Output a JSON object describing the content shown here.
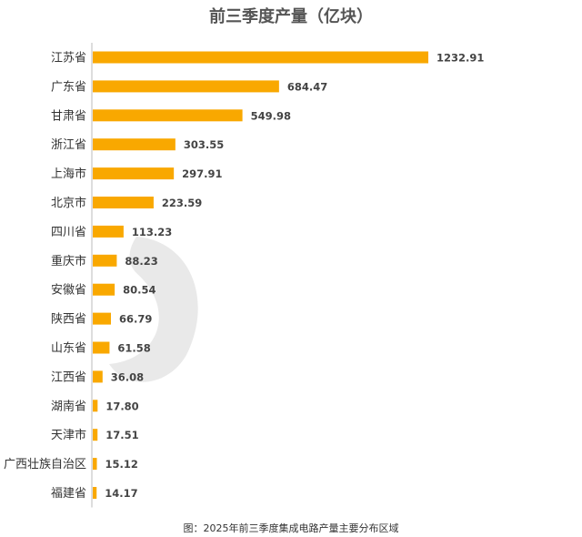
{
  "colors": {
    "bar": "#F9A800",
    "axis": "#bbbbbb",
    "watermark": "#e9e9e9"
  },
  "caption": "图：2025年前三季度集成电路产量主要分布区域",
  "chart_data": {
    "type": "bar",
    "orientation": "horizontal",
    "title": "前三季度产量（亿块）",
    "categories": [
      "江苏省",
      "广东省",
      "甘肃省",
      "浙江省",
      "上海市",
      "北京市",
      "四川省",
      "重庆市",
      "安徽省",
      "陕西省",
      "山东省",
      "江西省",
      "湖南省",
      "天津市",
      "广西壮族自治区",
      "福建省"
    ],
    "values": [
      1232.91,
      684.47,
      549.98,
      303.55,
      297.91,
      223.59,
      113.23,
      88.23,
      80.54,
      66.79,
      61.58,
      36.08,
      17.8,
      17.51,
      15.12,
      14.17
    ],
    "value_labels": [
      "1232.91",
      "684.47",
      "549.98",
      "303.55",
      "297.91",
      "223.59",
      "113.23",
      "88.23",
      "80.54",
      "66.79",
      "61.58",
      "36.08",
      "17.80",
      "17.51",
      "15.12",
      "14.17"
    ],
    "xlim": [
      0,
      1232.91
    ],
    "grid": false,
    "legend": "none"
  }
}
